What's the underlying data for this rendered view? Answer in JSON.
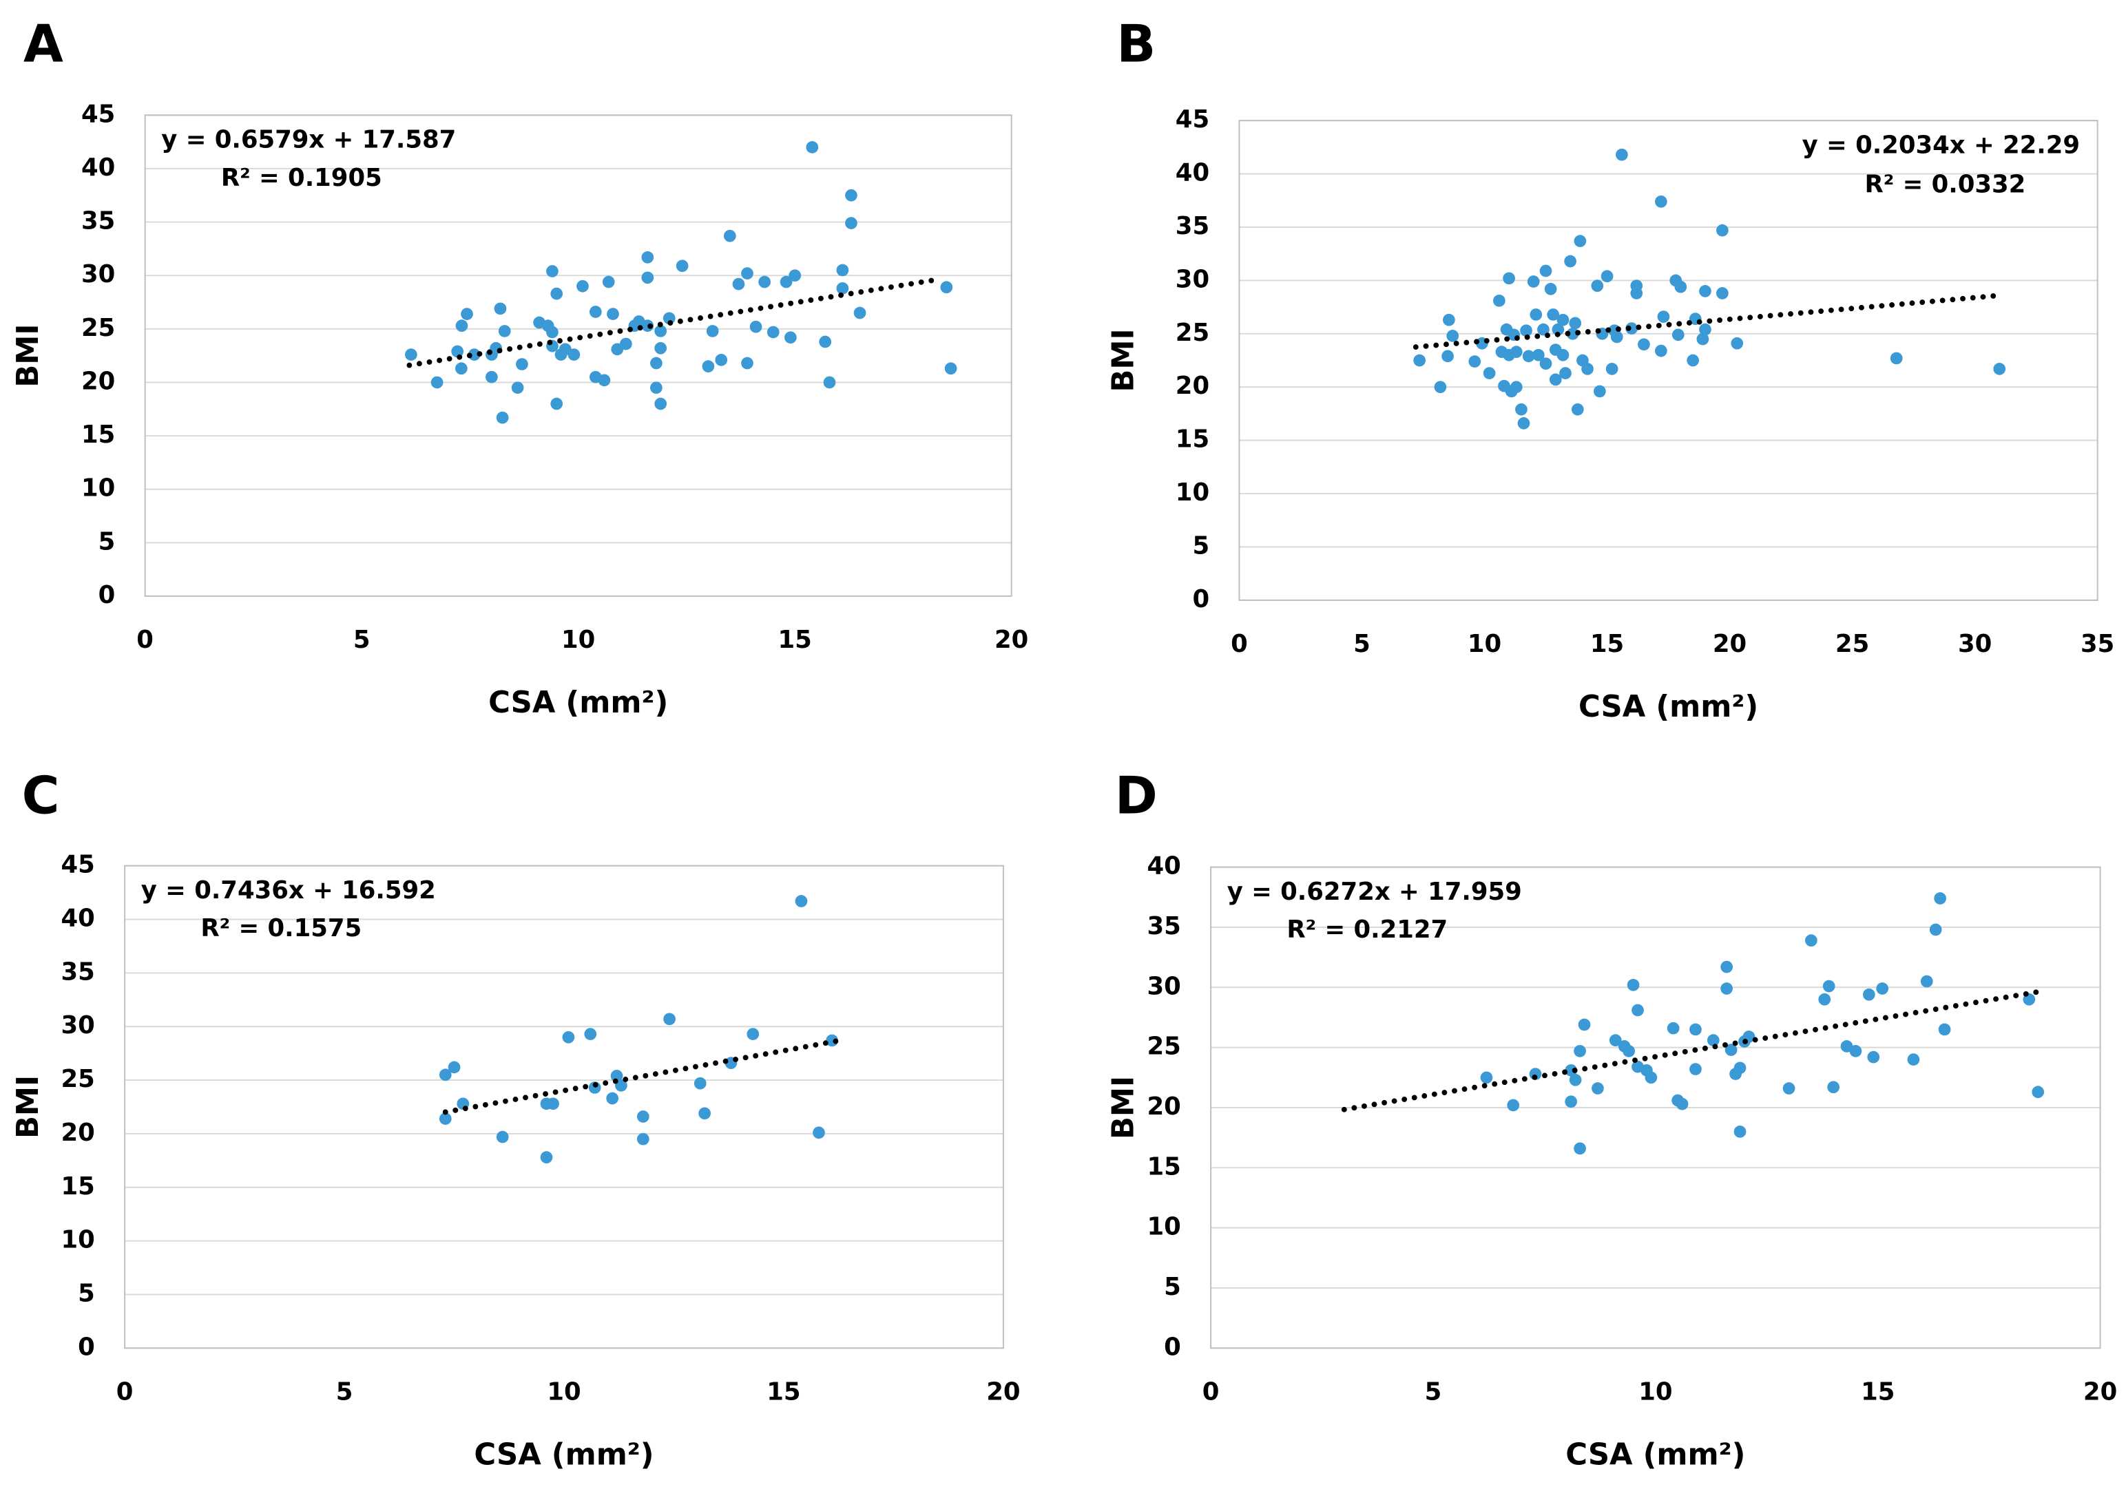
{
  "chart_data": [
    {
      "type": "scatter",
      "label": "A",
      "x_label": "CSA (mm²)",
      "y_label": "BMI",
      "color": "#3b9ad6",
      "grid": true,
      "equation_position": "top-left",
      "xlim": [
        0,
        20
      ],
      "xticks": [
        0,
        5,
        10,
        15,
        20
      ],
      "ylim": [
        0,
        45
      ],
      "yticks": [
        0,
        5,
        10,
        15,
        20,
        25,
        30,
        35,
        40,
        45
      ],
      "trendline": {
        "label": "y = 0.6579x + 17.587",
        "r2_label": "R² = 0.1905",
        "slope": 0.6579,
        "intercept": 17.587,
        "x_range": [
          6.1,
          18.3
        ]
      },
      "x": [
        6.14,
        6.74,
        7.21,
        7.31,
        7.43,
        7.3,
        7.6,
        8.0,
        8.0,
        8.1,
        8.2,
        8.3,
        8.25,
        8.6,
        8.7,
        9.1,
        9.3,
        9.4,
        9.4,
        9.5,
        9.5,
        9.4,
        9.6,
        9.7,
        9.9,
        10.1,
        10.4,
        10.4,
        10.6,
        10.7,
        10.8,
        10.9,
        11.1,
        11.3,
        11.4,
        11.6,
        11.6,
        11.6,
        11.8,
        11.8,
        11.9,
        11.9,
        11.9,
        12.1,
        12.4,
        13.0,
        13.1,
        13.3,
        13.5,
        13.7,
        13.9,
        13.9,
        14.1,
        14.3,
        14.5,
        14.8,
        14.9,
        15.0,
        15.4,
        15.7,
        15.8,
        16.1,
        16.1,
        16.3,
        16.3,
        16.5,
        18.5,
        18.6
      ],
      "values": [
        22.6,
        20.0,
        22.9,
        25.3,
        26.4,
        21.3,
        22.6,
        22.6,
        20.5,
        23.2,
        26.9,
        24.8,
        16.7,
        19.5,
        21.7,
        25.6,
        25.3,
        24.7,
        30.4,
        28.3,
        18.0,
        23.4,
        22.6,
        23.1,
        22.6,
        29.0,
        26.6,
        20.5,
        20.2,
        29.4,
        26.4,
        23.1,
        23.6,
        25.3,
        25.7,
        31.7,
        29.8,
        25.3,
        21.8,
        19.5,
        18.0,
        23.2,
        24.8,
        26.0,
        30.9,
        21.5,
        24.8,
        22.1,
        33.7,
        29.2,
        30.2,
        21.8,
        25.2,
        29.4,
        24.7,
        29.4,
        24.2,
        30.0,
        42.0,
        23.8,
        20.0,
        30.5,
        28.8,
        34.9,
        37.5,
        26.5,
        28.9,
        21.3
      ]
    },
    {
      "type": "scatter",
      "label": "B",
      "x_label": "CSA (mm²)",
      "y_label": "BMI",
      "color": "#3b9ad6",
      "grid": true,
      "equation_position": "top-right",
      "xlim": [
        0,
        35
      ],
      "xticks": [
        0,
        5,
        10,
        15,
        20,
        25,
        30,
        35
      ],
      "ylim": [
        0,
        45
      ],
      "yticks": [
        0,
        5,
        10,
        15,
        20,
        25,
        30,
        35,
        40,
        45
      ],
      "trendline": {
        "label": "y = 0.2034x + 22.29",
        "r2_label": "R² = 0.0332",
        "slope": 0.2034,
        "intercept": 22.29,
        "x_range": [
          7.2,
          31
        ]
      },
      "x": [
        7.35,
        8.2,
        8.5,
        8.55,
        8.7,
        9.6,
        9.9,
        10.2,
        10.6,
        10.7,
        10.8,
        10.9,
        11.0,
        11.0,
        11.1,
        11.2,
        11.3,
        11.3,
        11.5,
        11.6,
        11.7,
        11.8,
        12.0,
        12.1,
        12.2,
        12.4,
        12.5,
        12.5,
        12.7,
        12.8,
        12.9,
        12.9,
        13.0,
        13.2,
        13.2,
        13.3,
        13.5,
        13.6,
        13.7,
        13.8,
        13.9,
        14.0,
        14.2,
        14.6,
        14.7,
        14.8,
        15.0,
        15.2,
        15.3,
        15.4,
        15.6,
        16.0,
        16.2,
        16.2,
        16.5,
        17.2,
        17.2,
        17.3,
        17.8,
        17.9,
        18.0,
        18.5,
        18.6,
        18.9,
        19.0,
        19.0,
        19.7,
        19.7,
        20.3,
        26.8,
        31.0
      ],
      "values": [
        22.5,
        20.0,
        22.9,
        26.3,
        24.8,
        22.4,
        24.1,
        21.3,
        28.1,
        23.3,
        20.1,
        25.4,
        30.2,
        23.0,
        19.6,
        24.9,
        23.3,
        20.0,
        17.9,
        16.6,
        25.3,
        22.9,
        29.9,
        26.8,
        23.0,
        25.4,
        22.2,
        30.9,
        29.2,
        26.8,
        20.7,
        23.5,
        25.4,
        23.0,
        26.3,
        21.3,
        31.8,
        25.0,
        26.0,
        17.9,
        33.7,
        22.5,
        21.7,
        29.5,
        19.6,
        25.0,
        30.4,
        21.7,
        25.3,
        24.7,
        41.8,
        25.5,
        28.8,
        29.5,
        24.0,
        23.4,
        37.4,
        26.6,
        30.0,
        24.9,
        29.4,
        22.5,
        26.4,
        24.5,
        29.0,
        25.4,
        34.7,
        28.8,
        24.1,
        22.7,
        21.7
      ]
    },
    {
      "type": "scatter",
      "label": "C",
      "x_label": "CSA (mm²)",
      "y_label": "BMI",
      "color": "#3b9ad6",
      "grid": true,
      "equation_position": "top-left",
      "xlim": [
        0,
        20
      ],
      "xticks": [
        0,
        5,
        10,
        15,
        20
      ],
      "ylim": [
        0,
        45
      ],
      "yticks": [
        0,
        5,
        10,
        15,
        20,
        25,
        30,
        35,
        40,
        45
      ],
      "trendline": {
        "label": "y = 0.7436x + 16.592",
        "r2_label": "R² = 0.1575",
        "slope": 0.7436,
        "intercept": 16.592,
        "x_range": [
          7.3,
          16.2
        ]
      },
      "x": [
        7.3,
        7.3,
        7.5,
        7.7,
        8.6,
        9.6,
        9.6,
        9.75,
        10.1,
        10.6,
        10.7,
        11.1,
        11.2,
        11.3,
        11.8,
        11.8,
        12.4,
        13.1,
        13.2,
        13.8,
        14.3,
        15.4,
        15.8,
        16.1
      ],
      "values": [
        21.4,
        25.5,
        26.2,
        22.8,
        19.7,
        17.8,
        22.8,
        22.8,
        29.0,
        29.3,
        24.3,
        23.3,
        25.4,
        24.5,
        21.6,
        19.5,
        30.7,
        24.7,
        21.9,
        26.6,
        29.3,
        41.7,
        20.1,
        28.7
      ]
    },
    {
      "type": "scatter",
      "label": "D",
      "x_label": "CSA (mm²)",
      "y_label": "BMI",
      "color": "#3b9ad6",
      "grid": true,
      "equation_position": "top-left",
      "xlim": [
        0,
        20
      ],
      "xticks": [
        0,
        5,
        10,
        15,
        20
      ],
      "ylim": [
        0,
        40
      ],
      "yticks": [
        0,
        5,
        10,
        15,
        20,
        25,
        30,
        35,
        40
      ],
      "trendline": {
        "label": "y = 0.6272x + 17.959",
        "r2_label": "R² = 0.2127",
        "slope": 0.6272,
        "intercept": 17.959,
        "x_range": [
          3,
          18.6
        ]
      },
      "x": [
        6.2,
        6.8,
        7.3,
        8.1,
        8.1,
        8.2,
        8.3,
        8.4,
        8.3,
        8.7,
        9.1,
        9.3,
        9.4,
        9.5,
        9.6,
        9.6,
        9.8,
        9.9,
        10.4,
        10.5,
        10.6,
        10.9,
        10.9,
        11.3,
        11.6,
        11.6,
        11.7,
        11.8,
        11.9,
        11.9,
        12.0,
        12.1,
        13.0,
        13.5,
        13.8,
        13.9,
        14.0,
        14.3,
        14.5,
        14.8,
        14.9,
        15.1,
        15.8,
        16.1,
        16.3,
        16.4,
        16.5,
        18.4,
        18.6
      ],
      "values": [
        22.5,
        20.2,
        22.8,
        23.1,
        20.5,
        22.3,
        24.7,
        26.9,
        16.6,
        21.6,
        25.6,
        25.1,
        24.7,
        30.2,
        28.1,
        23.4,
        23.1,
        22.5,
        26.6,
        20.6,
        20.3,
        26.5,
        23.2,
        25.6,
        31.7,
        29.9,
        24.8,
        22.8,
        23.3,
        18.0,
        25.5,
        25.9,
        21.6,
        33.9,
        29.0,
        30.1,
        21.7,
        25.1,
        24.7,
        29.4,
        24.2,
        29.9,
        24.0,
        30.5,
        34.8,
        37.4,
        26.5,
        29.0,
        21.3
      ]
    }
  ]
}
